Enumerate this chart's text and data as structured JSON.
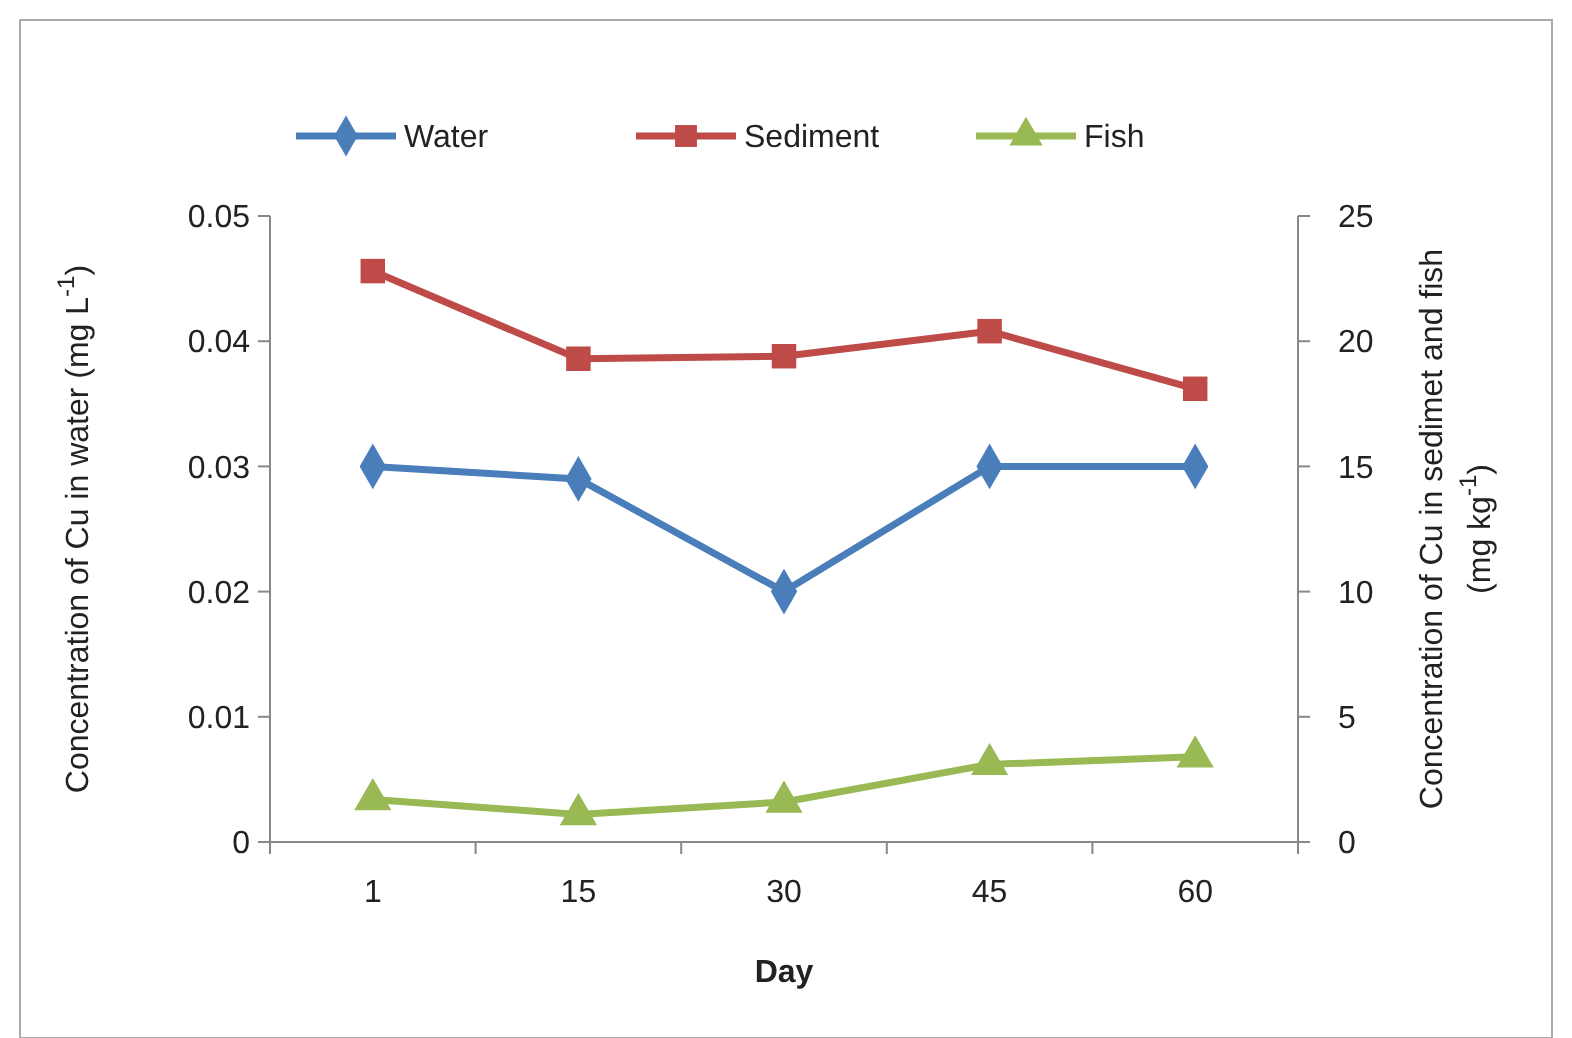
{
  "chart_data": {
    "type": "line",
    "xlabel": "Day",
    "ylabel": "Concentration of Cu in water (mg L$^{-1}$)",
    "y2label": "Concentration of Cu in sedimet and fish (mg kg$^{-1}$)",
    "categories": [
      "1",
      "15",
      "30",
      "45",
      "60"
    ],
    "series": [
      {
        "name": "Water",
        "color": "#4a7ebb",
        "marker": "diamond",
        "values": [
          0.03,
          0.029,
          0.02,
          0.03,
          0.03
        ]
      },
      {
        "name": "Sediment",
        "color": "#be4b48",
        "marker": "square",
        "axis": "y2",
        "values": [
          22.8,
          19.3,
          19.4,
          20.4,
          18.1
        ]
      },
      {
        "name": "Fish",
        "color": "#98b954",
        "marker": "triangle",
        "axis": "y2",
        "values": [
          1.7,
          1.1,
          1.6,
          3.1,
          3.4
        ]
      }
    ],
    "ylim": [
      0,
      0.05
    ],
    "yticks": [
      0,
      0.01,
      0.02,
      0.03,
      0.04,
      0.05
    ],
    "y2lim": [
      0,
      25
    ],
    "y2ticks": [
      0,
      5,
      10,
      15,
      20,
      25
    ],
    "grid": false,
    "legend": "top"
  }
}
